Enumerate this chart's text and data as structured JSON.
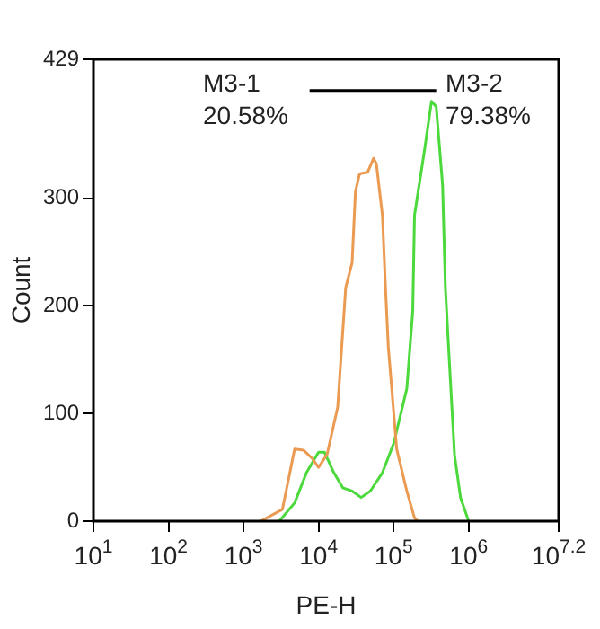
{
  "chart_data": {
    "type": "line",
    "xlabel": "PE-H",
    "ylabel": "Count",
    "log": "x",
    "grid": false,
    "legend": false,
    "marker": "none",
    "line_style": "solid",
    "xlim": [
      10,
      15848932
    ],
    "xticks": [
      {
        "value": 10,
        "label": "10$^{1}$"
      },
      {
        "value": 100,
        "label": "10$^{2}$"
      },
      {
        "value": 1000,
        "label": "10$^{3}$"
      },
      {
        "value": 10000,
        "label": "10$^{4}$"
      },
      {
        "value": 100000,
        "label": "10$^{5}$"
      },
      {
        "value": 1000000,
        "label": "10$^{6}$"
      },
      {
        "value": 15848932,
        "label": "10$^{7.2}$"
      }
    ],
    "ylim": [
      0,
      429
    ],
    "yticks": [
      0,
      100,
      200,
      300,
      429
    ],
    "series": [
      {
        "color": "#eb9a52",
        "x": [
          1700,
          3300,
          4800,
          6300,
          8300,
          10000,
          13000,
          18000,
          23000,
          28000,
          31000,
          35000,
          37000,
          45000,
          54000,
          59000,
          71000,
          78000,
          85000,
          110000,
          150000,
          190000,
          210000
        ],
        "values": [
          0,
          11,
          67,
          66,
          58,
          50,
          62,
          106,
          217,
          240,
          306,
          322,
          323,
          324,
          337,
          332,
          284,
          217,
          162,
          67,
          28,
          3,
          0
        ]
      },
      {
        "color": "#4cd93c",
        "x": [
          3000,
          4800,
          6900,
          10000,
          12000,
          16000,
          21000,
          28000,
          37000,
          49000,
          71000,
          100000,
          150000,
          180000,
          190000,
          260000,
          320000,
          370000,
          450000,
          490000,
          540000,
          650000,
          780000,
          1000000
        ],
        "values": [
          0,
          17,
          45,
          64,
          64,
          45,
          31,
          28,
          22,
          28,
          45,
          72,
          123,
          195,
          284,
          346,
          390,
          385,
          312,
          217,
          162,
          61,
          22,
          0
        ]
      },
      {
        "color": "#000000",
        "x": [
          7600,
          89000,
          370000
        ],
        "values": [
          400,
          400,
          400
        ]
      }
    ],
    "annotations": [
      "M3-1",
      "20.58%",
      "M3-2",
      "79.38%"
    ]
  }
}
